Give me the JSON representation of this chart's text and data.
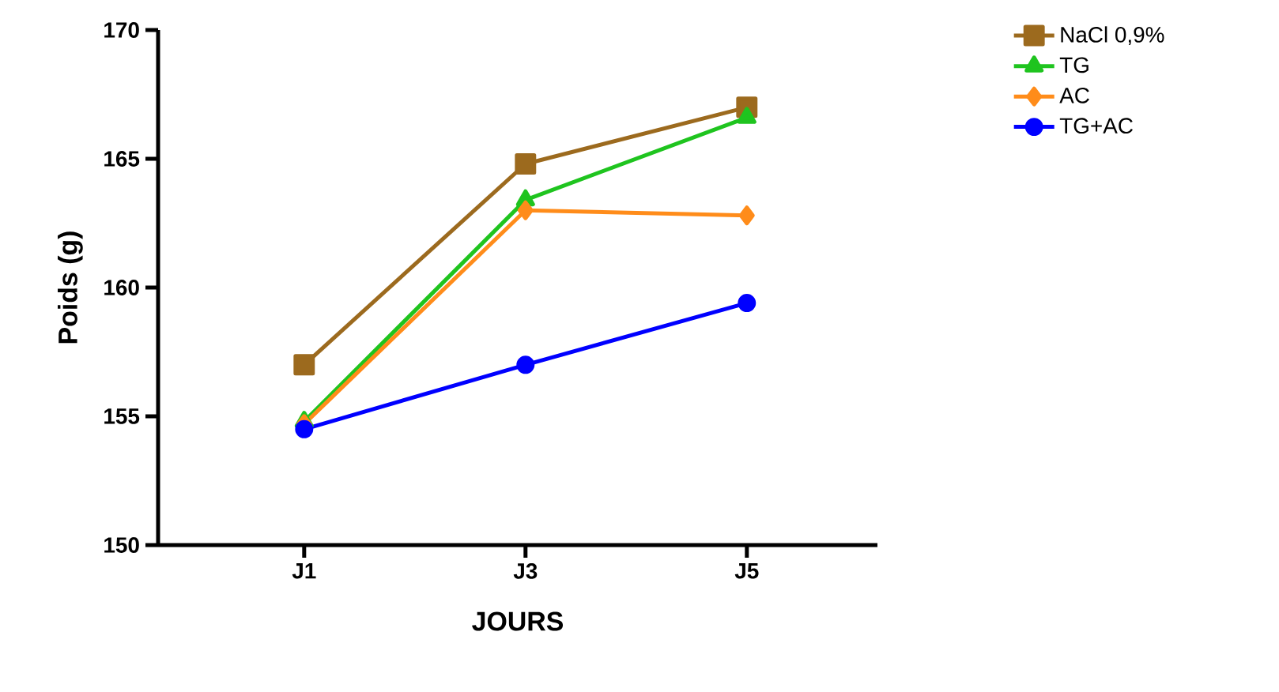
{
  "chart_data": {
    "type": "line",
    "xlabel": "JOURS",
    "ylabel": "Poids (g)",
    "categories": [
      "J1",
      "J3",
      "J5"
    ],
    "series": [
      {
        "name": "NaCl 0,9%",
        "color": "#9c6a1e",
        "marker": "square",
        "values": [
          157.0,
          164.8,
          167.0
        ]
      },
      {
        "name": "TG",
        "color": "#1fc41f",
        "marker": "triangle",
        "values": [
          154.8,
          163.4,
          166.6
        ]
      },
      {
        "name": "AC",
        "color": "#ff8c1a",
        "marker": "diamond",
        "values": [
          154.7,
          163.0,
          162.8
        ]
      },
      {
        "name": "TG+AC",
        "color": "#0000ff",
        "marker": "circle",
        "values": [
          154.5,
          157.0,
          159.4
        ]
      }
    ],
    "ylim": [
      150,
      170
    ],
    "yticks": [
      150,
      155,
      160,
      165,
      170
    ],
    "grid": false,
    "legend": "top right",
    "line_style": "solid"
  }
}
